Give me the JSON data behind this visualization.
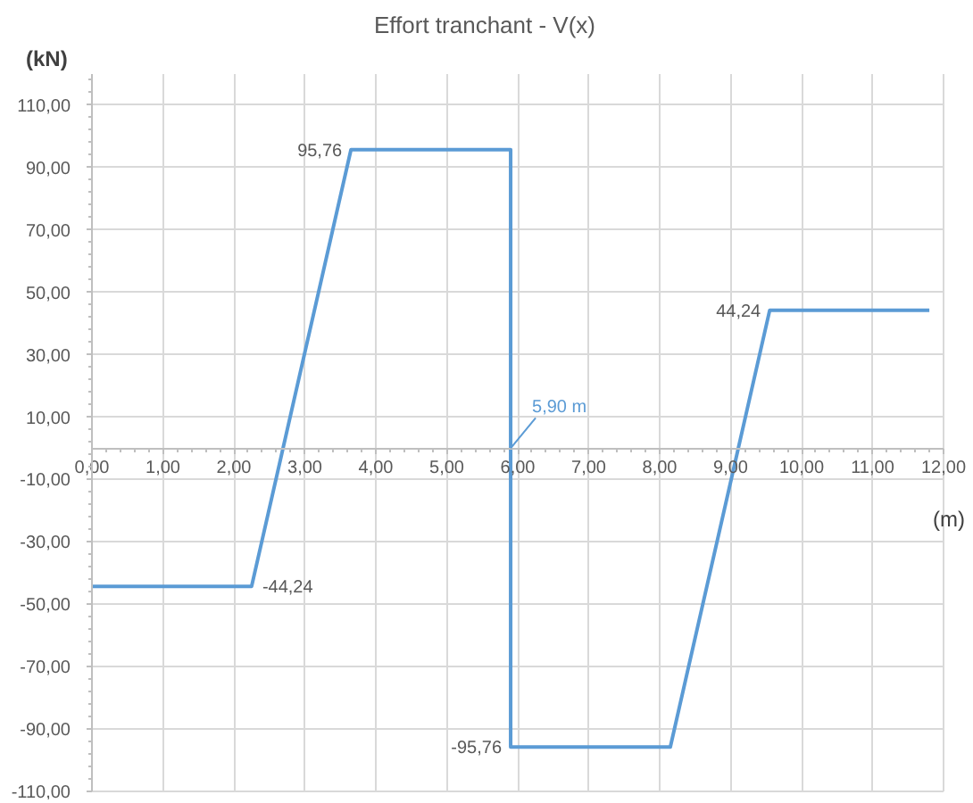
{
  "chart_data": {
    "type": "line",
    "title": "Effort tranchant - V(x)",
    "xlabel": "(m)",
    "ylabel": "(kN)",
    "x": [
      0,
      2.25,
      3.65,
      5.9,
      5.9,
      8.15,
      9.55,
      11.8
    ],
    "series": [
      {
        "color": "#5b9bd5",
        "values": [
          -44.24,
          -44.24,
          95.76,
          95.76,
          -95.76,
          -95.76,
          44.24,
          44.24
        ],
        "value_labels": [
          null,
          "-44,24",
          "95,76",
          null,
          "-95,76",
          null,
          "44,24",
          null
        ]
      }
    ],
    "annotations": [
      {
        "text": "5,90 m",
        "x": 5.9,
        "y": 0
      }
    ],
    "xlim": [
      0,
      12
    ],
    "ylim": [
      -110,
      120
    ],
    "xticks": [
      {
        "value": 0,
        "label": "0,00"
      },
      {
        "value": 1,
        "label": "1,00"
      },
      {
        "value": 2,
        "label": "2,00"
      },
      {
        "value": 3,
        "label": "3,00"
      },
      {
        "value": 4,
        "label": "4,00"
      },
      {
        "value": 5,
        "label": "5,00"
      },
      {
        "value": 6,
        "label": "6,00"
      },
      {
        "value": 7,
        "label": "7,00"
      },
      {
        "value": 8,
        "label": "8,00"
      },
      {
        "value": 9,
        "label": "9,00"
      },
      {
        "value": 10,
        "label": "10,00"
      },
      {
        "value": 11,
        "label": "11,00"
      },
      {
        "value": 12,
        "label": "12,00"
      }
    ],
    "yticks": [
      {
        "value": -110,
        "label": "-110,00"
      },
      {
        "value": -90,
        "label": "-90,00"
      },
      {
        "value": -70,
        "label": "-70,00"
      },
      {
        "value": -50,
        "label": "-50,00"
      },
      {
        "value": -30,
        "label": "-30,00"
      },
      {
        "value": -10,
        "label": "-10,00"
      },
      {
        "value": 10,
        "label": "10,00"
      },
      {
        "value": 30,
        "label": "30,00"
      },
      {
        "value": 50,
        "label": "50,00"
      },
      {
        "value": 70,
        "label": "70,00"
      },
      {
        "value": 90,
        "label": "90,00"
      },
      {
        "value": 110,
        "label": "110,00"
      }
    ],
    "grid": true,
    "line_style": "solid"
  }
}
